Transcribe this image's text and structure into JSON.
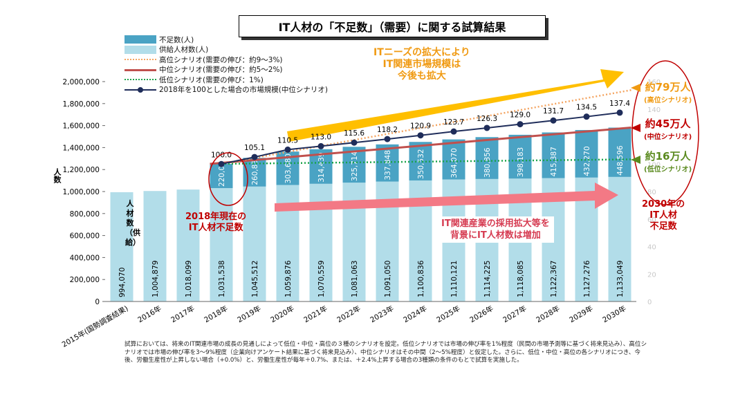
{
  "title": "IT人材の「不足数」（需要）に関する試算結果",
  "legend": [
    {
      "key": "shortage",
      "label": "不足数(人)",
      "color": "#4aa3c4"
    },
    {
      "key": "supply",
      "label": "供給人材数(人)",
      "color": "#b2dde9"
    },
    {
      "key": "high",
      "label": "高位シナリオ(需要の伸び：約9～3%)",
      "color": "#f4a460"
    },
    {
      "key": "mid",
      "label": "中位シナリオ(需要の伸び：約5～2%)",
      "color": "#c0504d"
    },
    {
      "key": "low",
      "label": "低位シナリオ(需要の伸び：1%)",
      "color": "#1aa34a"
    },
    {
      "key": "market",
      "label": "2018年を100とした場合の市場規模(中位シナリオ)",
      "color": "#1f2d5a"
    }
  ],
  "y_axis_title": "人数",
  "supply_vertical_label": "人材数（供給）",
  "callouts": {
    "top_arrow": [
      "ITニーズの拡大により",
      "IT関連市場規模は",
      "今後も拡大"
    ],
    "bottom_arrow": [
      "IT関連産業の採用拡大等を",
      "背景にIT人材数は増加"
    ],
    "current_2018": [
      "2018年現在の",
      "IT人材不足数"
    ],
    "shortage_2030": [
      "2030年の",
      "IT人材",
      "不足数"
    ],
    "high": {
      "main": "約79万人",
      "sub": "(高位シナリオ)"
    },
    "mid": {
      "main": "約45万人",
      "sub": "(中位シナリオ)"
    },
    "low": {
      "main": "約16万人",
      "sub": "(低位シナリオ)"
    }
  },
  "footnote": "試算においては、将来のIT関連市場の成長の見通しによって低位・中位・高位の３種のシナリオを設定。低位シナリオでは市場の伸び率を1%程度（民間の市場予測等に基づく将来見込み）、高位シナリオでは市場の伸び率を3～9%程度（企業向けアンケート結果に基づく将来見込み）、中位シナリオはその中間（2～5%程度）と仮定した。さらに、低位・中位・高位の各シナリオにつき、今後、労働生産性が上昇しない場合（+0.0%）と、労働生産性が毎年＋0.7%、または、＋2.4%上昇する場合の3種類の条件のもとで試算を実施した。",
  "chart_data": {
    "type": "bar",
    "categories": [
      "2015年(国勢調査結果)",
      "2016年",
      "2017年",
      "2018年",
      "2019年",
      "2020年",
      "2021年",
      "2022年",
      "2023年",
      "2024年",
      "2025年",
      "2026年",
      "2027年",
      "2028年",
      "2029年",
      "2030年"
    ],
    "supply": [
      994070,
      1004879,
      1018099,
      1031538,
      1045512,
      1059876,
      1070559,
      1081063,
      1091050,
      1100836,
      1110121,
      1114225,
      1118085,
      1122367,
      1127276,
      1133049
    ],
    "supply_labels": [
      "994,070",
      "1,004,879",
      "1,018,099",
      "1,031,538",
      "1,045,512",
      "1,059,876",
      "1,070,559",
      "1,081,063",
      "1,091,050",
      "1,100,836",
      "1,110,121",
      "1,114,225",
      "1,118,085",
      "1,122,367",
      "1,127,276",
      "1,133,049"
    ],
    "shortage": [
      null,
      null,
      null,
      220000,
      260835,
      303680,
      314439,
      325714,
      337848,
      350532,
      364070,
      380856,
      398183,
      415387,
      432270,
      448596
    ],
    "shortage_labels": [
      "",
      "",
      "",
      "220,000",
      "260,835",
      "303,680",
      "314,439",
      "325,714",
      "337,848",
      "350,532",
      "364,070",
      "380,856",
      "398,183",
      "415,387",
      "432,270",
      "448,596"
    ],
    "market_index": [
      null,
      null,
      null,
      100.0,
      105.1,
      110.5,
      113.0,
      115.6,
      118.2,
      120.9,
      123.7,
      126.3,
      129.0,
      131.7,
      134.5,
      137.4
    ],
    "market_labels": [
      "",
      "",
      "",
      "100.0",
      "105.1",
      "110.5",
      "113.0",
      "115.6",
      "118.2",
      "120.9",
      "123.7",
      "126.3",
      "129.0",
      "131.7",
      "134.5",
      "137.4"
    ],
    "high_total": [
      null,
      null,
      null,
      1251538,
      null,
      null,
      null,
      null,
      null,
      null,
      null,
      null,
      null,
      null,
      null,
      1923049
    ],
    "low_total": [
      null,
      null,
      null,
      1251538,
      null,
      null,
      null,
      null,
      null,
      null,
      null,
      null,
      null,
      null,
      null,
      1293049
    ],
    "ylim": [
      0,
      2000000
    ],
    "yticks": [
      0,
      200000,
      400000,
      600000,
      800000,
      1000000,
      1200000,
      1400000,
      1600000,
      1800000,
      2000000
    ],
    "ytick_labels": [
      "0",
      "200,000",
      "400,000",
      "600,000",
      "800,000",
      "1,000,000",
      "1,200,000",
      "1,400,000",
      "1,600,000",
      "1,800,000",
      "2,000,000"
    ],
    "y2lim": [
      0,
      160
    ],
    "y2ticks": [
      "0",
      "20",
      "40",
      "60",
      "80",
      "100",
      "120",
      "140",
      "160"
    ]
  }
}
